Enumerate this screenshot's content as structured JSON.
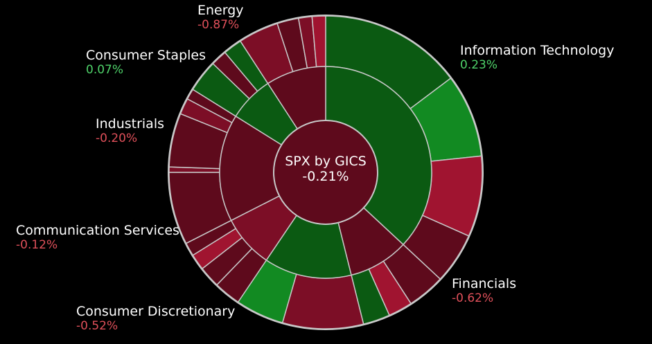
{
  "chart_data": {
    "type": "sunburst",
    "title": "SPX by GICS",
    "total_change_label": "-0.21%",
    "colors": {
      "positive_dark": "#0b5a12",
      "positive": "#128a22",
      "negative_dark": "#5e0a1c",
      "negative": "#7c0e26",
      "negative_bright": "#a01430",
      "stroke": "#c8c8c8"
    },
    "sectors": [
      {
        "name": "Information Technology",
        "change_label": "0.23%",
        "change": 0.23
      },
      {
        "name": "Financials",
        "change_label": "-0.62%",
        "change": -0.62
      },
      {
        "name": "Consumer Discretionary",
        "change_label": "-0.52%",
        "change": -0.52
      },
      {
        "name": "Communication Services",
        "change_label": "-0.12%",
        "change": -0.12
      },
      {
        "name": "Industrials",
        "change_label": "-0.20%",
        "change": -0.2
      },
      {
        "name": "Consumer Staples",
        "change_label": "0.07%",
        "change": 0.07
      },
      {
        "name": "Energy",
        "change_label": "-0.87%",
        "change": -0.87
      }
    ]
  }
}
